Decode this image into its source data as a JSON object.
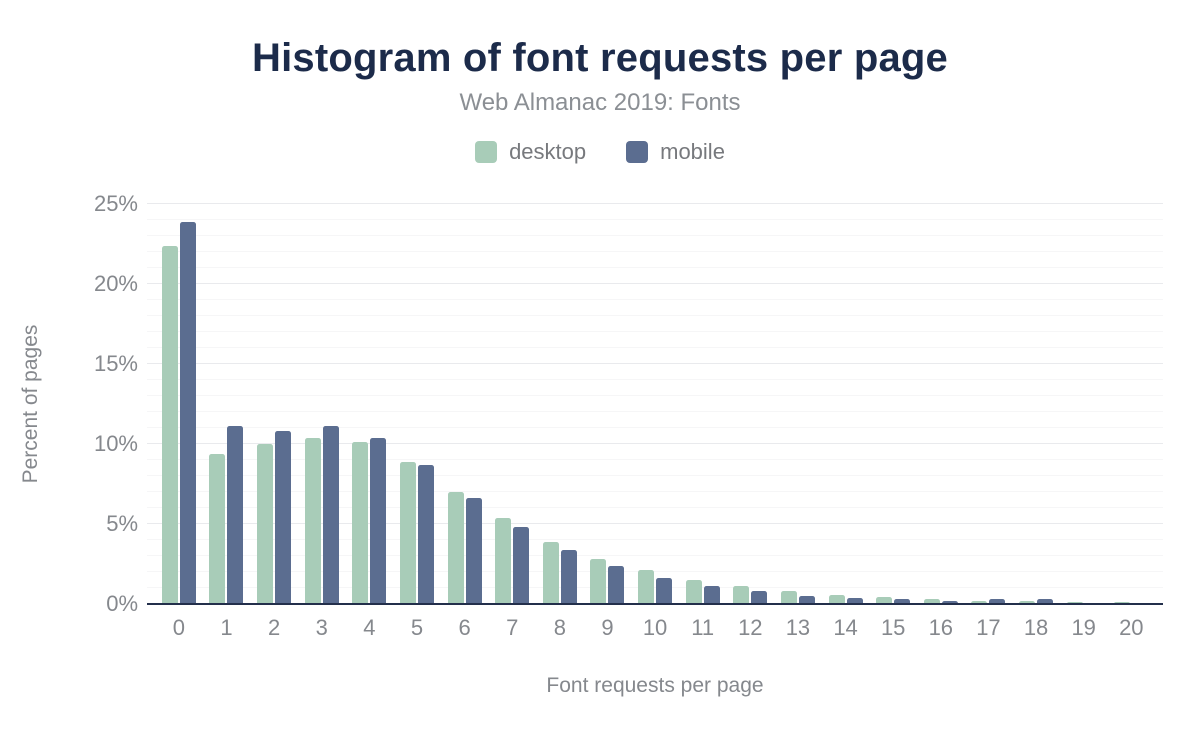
{
  "chart_data": {
    "type": "bar",
    "title": "Histogram of font requests per page",
    "subtitle": "Web Almanac 2019: Fonts",
    "xlabel": "Font requests per page",
    "ylabel": "Percent of pages",
    "legend_position": "top",
    "grid": true,
    "categories": [
      "0",
      "1",
      "2",
      "3",
      "4",
      "5",
      "6",
      "7",
      "8",
      "9",
      "10",
      "11",
      "12",
      "13",
      "14",
      "15",
      "16",
      "17",
      "18",
      "19",
      "20"
    ],
    "series": [
      {
        "name": "desktop",
        "color": "#a8ccb8",
        "values": [
          22.4,
          9.4,
          10.0,
          10.4,
          10.1,
          8.9,
          7.0,
          5.4,
          3.9,
          2.8,
          2.1,
          1.5,
          1.1,
          0.8,
          0.55,
          0.45,
          0.3,
          0.2,
          0.2,
          0.15,
          0.15
        ]
      },
      {
        "name": "mobile",
        "color": "#5b6d90",
        "values": [
          23.9,
          11.1,
          10.8,
          11.1,
          10.4,
          8.7,
          6.6,
          4.8,
          3.4,
          2.4,
          1.6,
          1.1,
          0.8,
          0.5,
          0.4,
          0.3,
          0.2,
          0.3,
          0.3,
          0.08,
          0.08
        ]
      }
    ],
    "y_axis": {
      "min": 0,
      "max": 25,
      "major_step": 5,
      "minor_step": 1,
      "ticks": [
        {
          "value": 0,
          "label": "0%"
        },
        {
          "value": 5,
          "label": "5%"
        },
        {
          "value": 10,
          "label": "10%"
        },
        {
          "value": 15,
          "label": "15%"
        },
        {
          "value": 20,
          "label": "20%"
        },
        {
          "value": 25,
          "label": "25%"
        }
      ]
    }
  },
  "colors": {
    "title": "#1c2b4a",
    "axis_line": "#232f4b",
    "grid_major": "#e9eaed",
    "grid_minor": "#f6f6f7",
    "text_gray": "#85888d"
  }
}
